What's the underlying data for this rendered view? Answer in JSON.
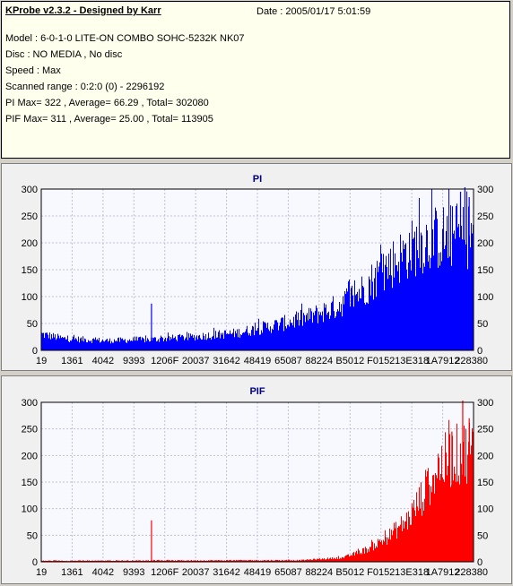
{
  "info": {
    "title": "KProbe v2.3.2 - Designed by Karr",
    "date": "Date : 2005/01/17 5:01:59",
    "lines": [
      "Model : 6-0-1-0 LITE-ON COMBO SOHC-5232K NK07",
      "Disc : NO MEDIA , No disc",
      "Speed : Max",
      "Scanned range : 0:2:0 (0) - 2296192",
      "PI Max= 322 , Average= 66.29 , Total= 302080",
      "PIF Max= 311 , Average= 25.00 , Total= 113905"
    ]
  },
  "chart_data": [
    {
      "type": "bar",
      "title": "PI",
      "color": "#0000ff",
      "ylim": [
        0,
        300
      ],
      "yticks": [
        0,
        50,
        100,
        150,
        200,
        250,
        300
      ],
      "xticks": [
        "19",
        "1361",
        "4042",
        "9393",
        "1206F",
        "20037",
        "31642",
        "48419",
        "65087",
        "88224",
        "B5012",
        "F0152",
        "13E318",
        "1A7912",
        "228380"
      ],
      "grid": true,
      "profile": {
        "x": [
          0.0,
          0.05,
          0.15,
          0.25,
          0.35,
          0.45,
          0.55,
          0.62,
          0.68,
          0.74,
          0.8,
          0.85,
          0.88,
          0.92,
          1.0
        ],
        "y": [
          30,
          22,
          18,
          20,
          25,
          32,
          48,
          62,
          80,
          110,
          155,
          185,
          200,
          210,
          215
        ]
      },
      "spikes": [
        {
          "x": 0.255,
          "y": 87
        },
        {
          "x": 0.97,
          "y": 295
        },
        {
          "x": 0.98,
          "y": 322
        },
        {
          "x": 0.99,
          "y": 285
        }
      ]
    },
    {
      "type": "bar",
      "title": "PIF",
      "color": "#ff0000",
      "ylim": [
        0,
        300
      ],
      "yticks": [
        0,
        50,
        100,
        150,
        200,
        250,
        300
      ],
      "xticks": [
        "19",
        "1361",
        "4042",
        "9393",
        "1206F",
        "20037",
        "31642",
        "48419",
        "65087",
        "88224",
        "B5012",
        "F0152",
        "13E318",
        "1A7912",
        "228380"
      ],
      "grid": true,
      "profile": {
        "x": [
          0.0,
          0.6,
          0.7,
          0.76,
          0.8,
          0.85,
          0.88,
          0.92,
          0.96,
          1.0
        ],
        "y": [
          2,
          3,
          8,
          25,
          45,
          80,
          120,
          180,
          200,
          215
        ]
      },
      "spikes": [
        {
          "x": 0.255,
          "y": 78
        },
        {
          "x": 0.95,
          "y": 245
        },
        {
          "x": 0.975,
          "y": 311
        },
        {
          "x": 0.99,
          "y": 270
        }
      ]
    }
  ]
}
